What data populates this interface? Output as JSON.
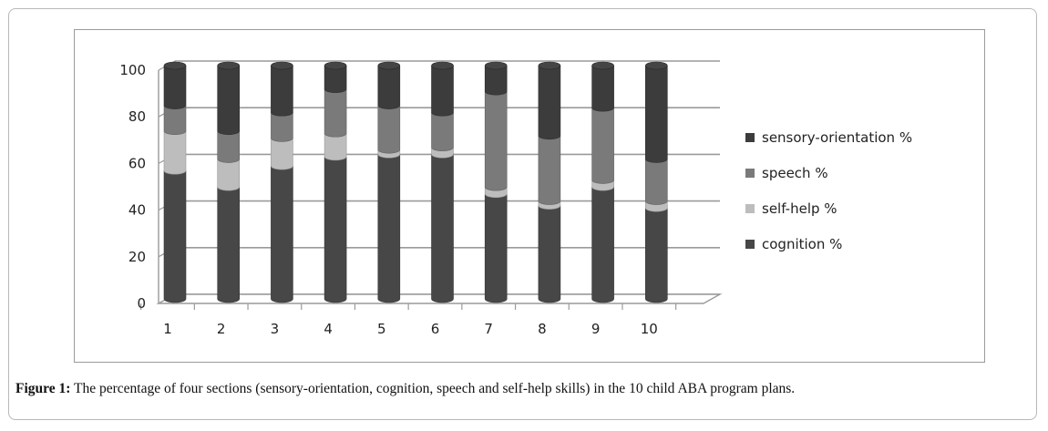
{
  "caption": {
    "label": "Figure 1:",
    "text": " The percentage of four sections (sensory-orientation, cognition, speech and self-help skills) in the 10 child ABA program plans."
  },
  "colors": {
    "cognition": "#474747",
    "self_help": "#bdbdbd",
    "speech": "#7a7a7a",
    "sensory_orientation": "#3c3c3c",
    "gridline": "#9a9a9a"
  },
  "chart_data": {
    "type": "bar",
    "stacked": true,
    "three_d": true,
    "categories": [
      "1",
      "2",
      "3",
      "4",
      "5",
      "6",
      "7",
      "8",
      "9",
      "10"
    ],
    "series": [
      {
        "name": "cognition %",
        "key": "cognition",
        "values": [
          55,
          48,
          57,
          61,
          62,
          62,
          45,
          40,
          48,
          39
        ]
      },
      {
        "name": "self-help %",
        "key": "self_help",
        "values": [
          17,
          12,
          12,
          10,
          2,
          3,
          3,
          2,
          3,
          3
        ]
      },
      {
        "name": "speech %",
        "key": "speech",
        "values": [
          11,
          12,
          11,
          19,
          19,
          15,
          41,
          28,
          31,
          18
        ]
      },
      {
        "name": "sensory-orientation %",
        "key": "sensory_orientation",
        "values": [
          17,
          28,
          20,
          10,
          17,
          20,
          11,
          30,
          18,
          40
        ]
      }
    ],
    "legend_order": [
      "sensory-orientation %",
      "speech %",
      "self-help %",
      "cognition %"
    ],
    "legend_position": "right",
    "yticks": [
      "0",
      "20",
      "40",
      "60",
      "80",
      "100"
    ],
    "ylim": [
      0,
      100
    ],
    "grid": true,
    "title": "",
    "xlabel": "",
    "ylabel": ""
  }
}
